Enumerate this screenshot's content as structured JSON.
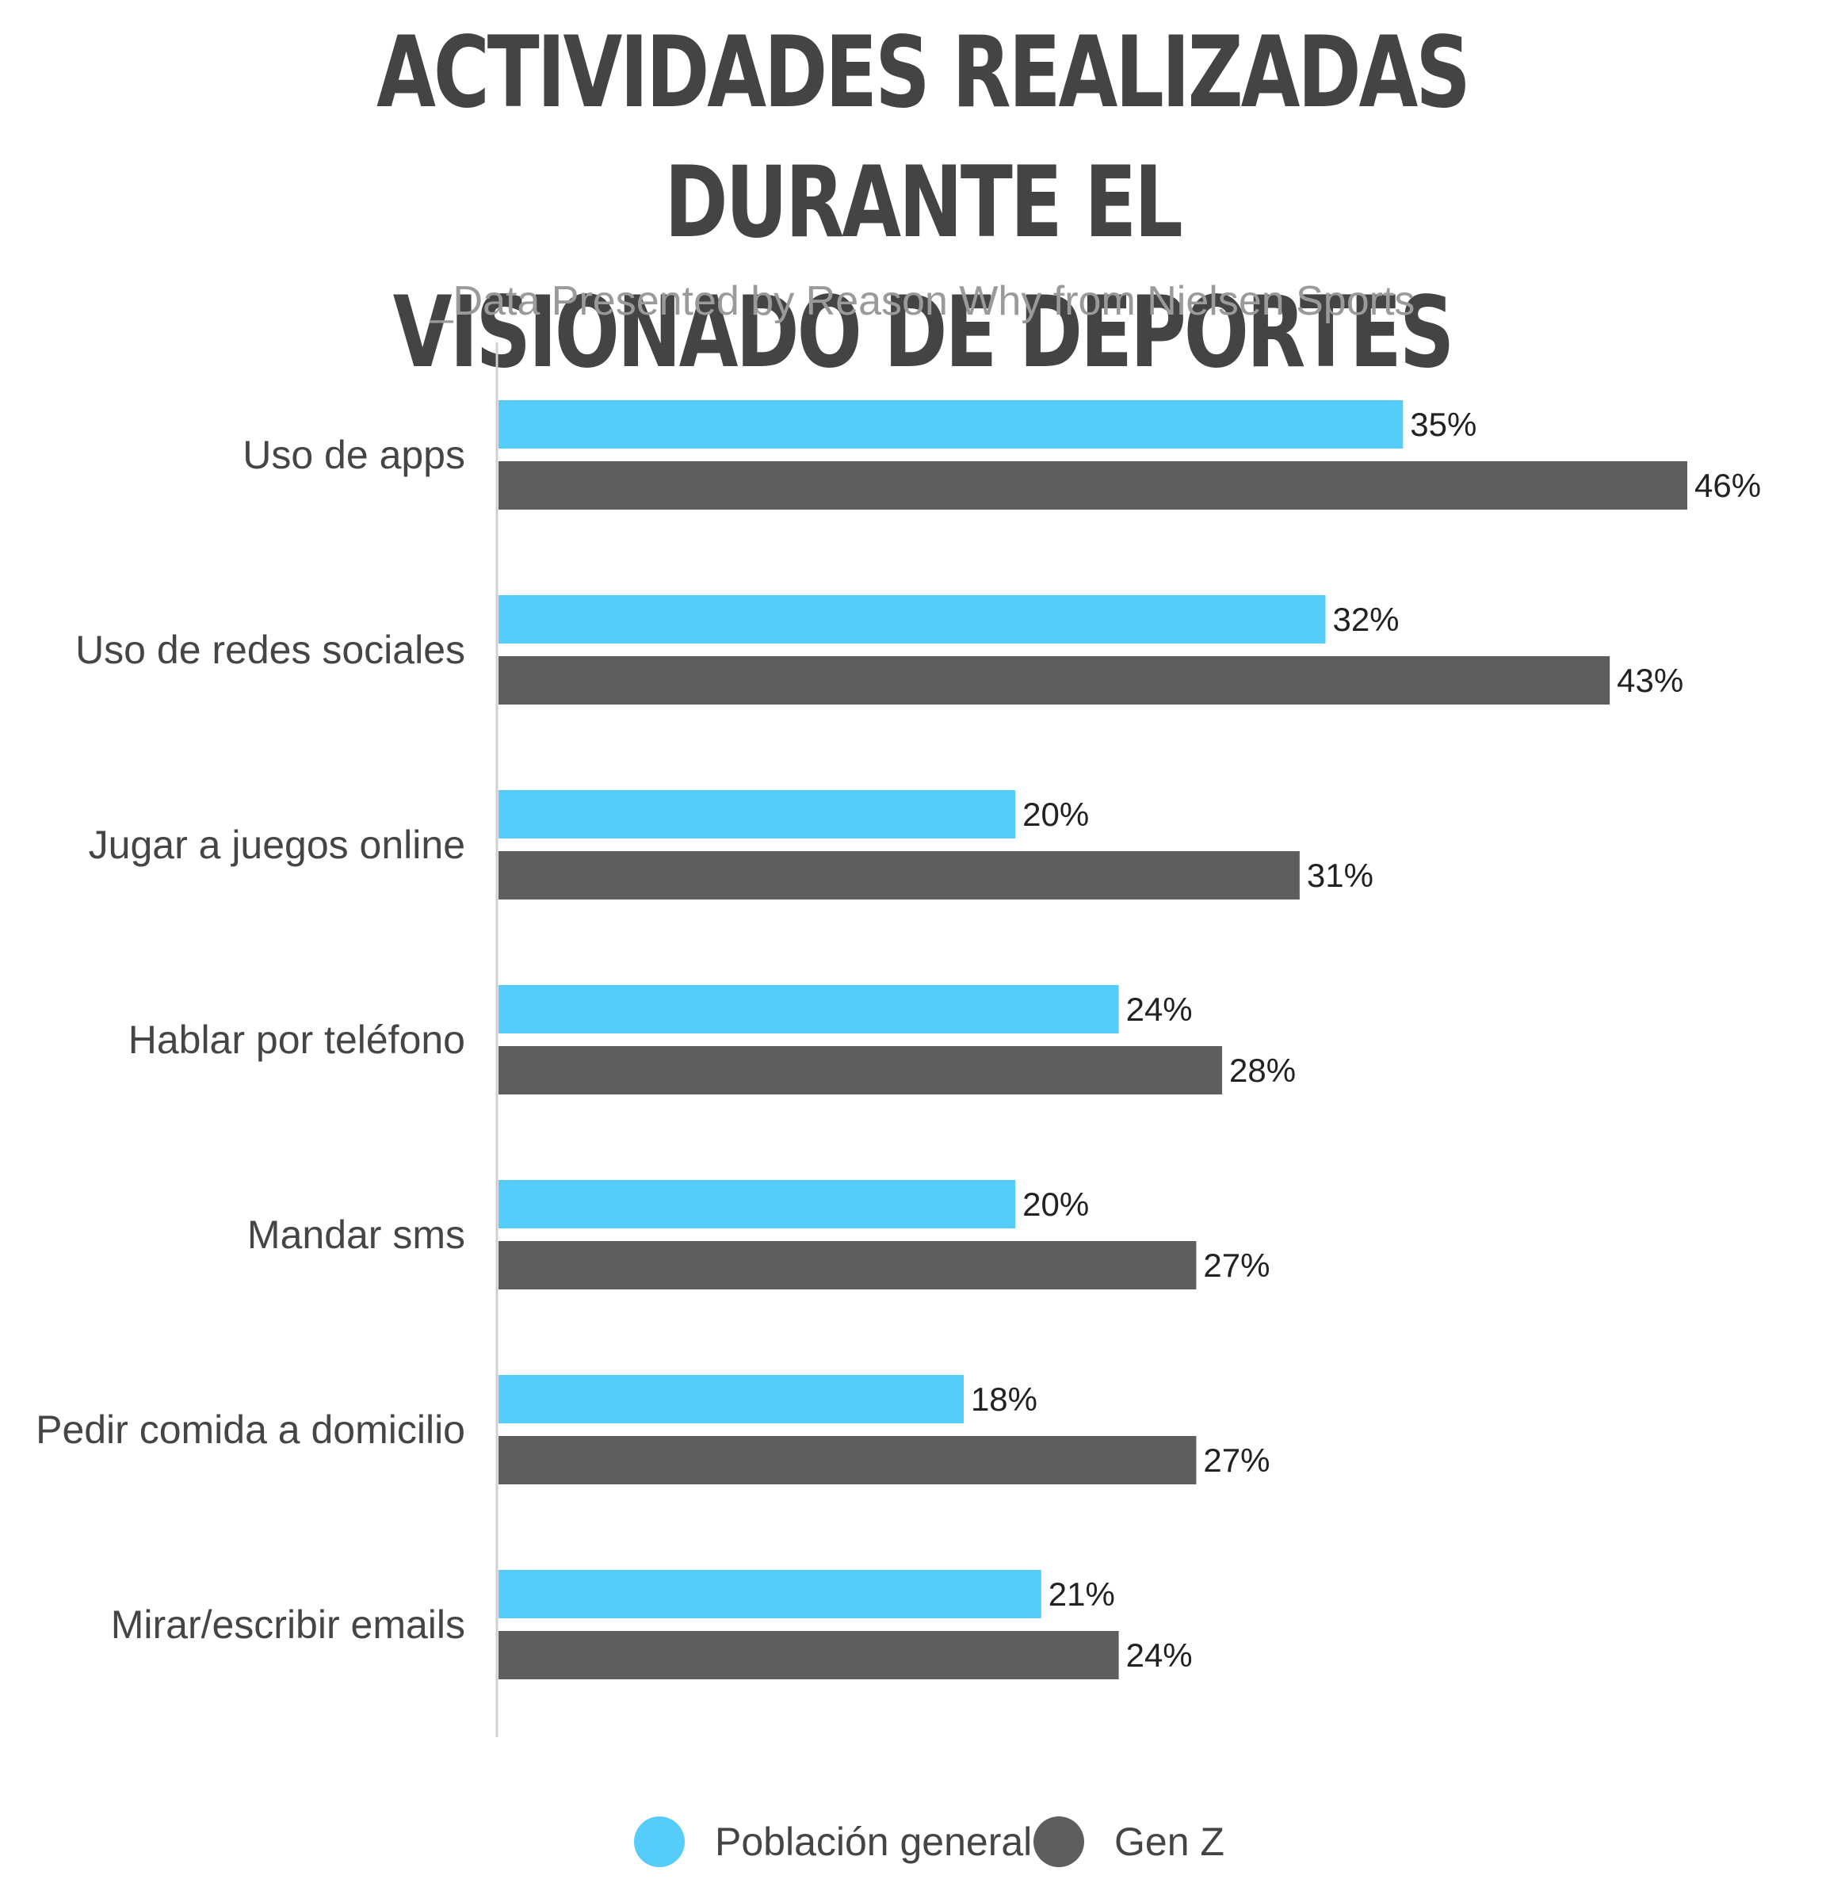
{
  "chart_data": {
    "type": "bar",
    "orientation": "horizontal",
    "title": "ACTIVIDADES REALIZADAS DURANTE EL VISIONADO DE DEPORTES",
    "title_lines": [
      "ACTIVIDADES REALIZADAS DURANTE EL",
      "VISIONADO DE DEPORTES"
    ],
    "subtitle": "_Data Presented by Reason Why from Nielsen Sports",
    "categories": [
      "Uso de apps",
      "Uso de redes sociales",
      "Jugar a juegos online",
      "Hablar por teléfono",
      "Mandar sms",
      "Pedir comida a domicilio",
      "Mirar/escribir emails"
    ],
    "series": [
      {
        "name": "Población general",
        "color": "#56CCFB",
        "values": [
          35,
          32,
          20,
          24,
          20,
          18,
          21
        ],
        "labels": [
          "35%",
          "32%",
          "20%",
          "24%",
          "20%",
          "18%",
          "21%"
        ]
      },
      {
        "name": "Gen Z",
        "color": "#5E5E5E",
        "values": [
          46,
          43,
          31,
          28,
          27,
          27,
          24
        ],
        "labels": [
          "46%",
          "43%",
          "31%",
          "28%",
          "27%",
          "27%",
          "24%"
        ]
      }
    ],
    "xlim": [
      0,
      46
    ],
    "grid": false,
    "legend_position": "bottom-center",
    "axis_color": "#D0D0D0"
  }
}
